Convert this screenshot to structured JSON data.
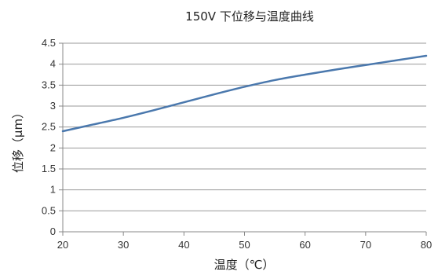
{
  "chart_data": {
    "type": "line",
    "title": "150V 下位移与温度曲线",
    "xlabel": "温度（℃）",
    "ylabel": "位移（μm）",
    "xlim": [
      20,
      80
    ],
    "ylim": [
      0,
      4.5
    ],
    "x_ticks": [
      "20",
      "30",
      "40",
      "50",
      "60",
      "70",
      "80"
    ],
    "y_ticks": [
      "0",
      "0.5",
      "1",
      "1.5",
      "2",
      "2.5",
      "3",
      "3.5",
      "4",
      "4.5"
    ],
    "grid": "horizontal",
    "legend": "none",
    "series": [
      {
        "color": "#4a78ad",
        "x": [
          20,
          25,
          30,
          35,
          40,
          45,
          50,
          55,
          60,
          65,
          70,
          75,
          80
        ],
        "y": [
          2.4,
          2.56,
          2.72,
          2.9,
          3.09,
          3.28,
          3.46,
          3.62,
          3.75,
          3.87,
          3.98,
          4.09,
          4.2
        ]
      }
    ]
  }
}
